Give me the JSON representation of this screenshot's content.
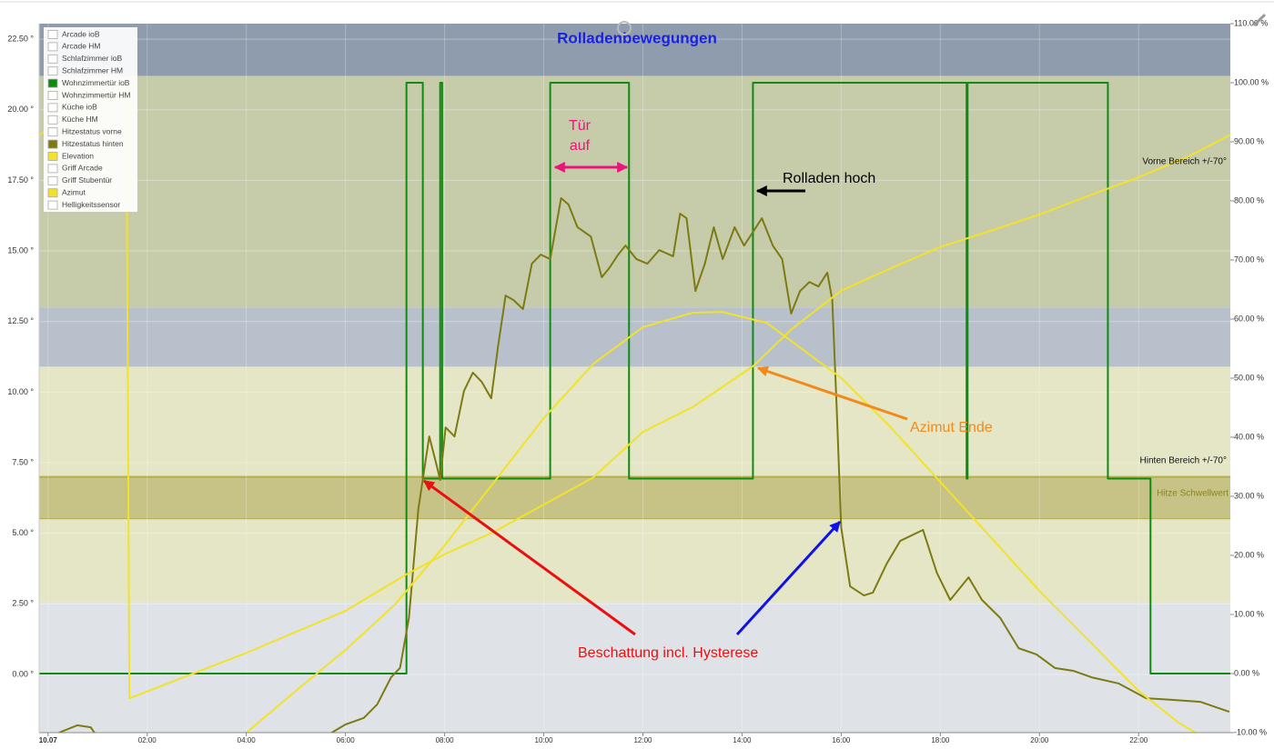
{
  "chart_data": {
    "type": "line",
    "title": "Rolladenbewegungen",
    "xlim": [
      -0.18,
      23.85
    ],
    "xticks": [
      {
        "value": 0,
        "label": "10.07"
      },
      {
        "value": 2,
        "label": "02:00"
      },
      {
        "value": 4,
        "label": "04:00"
      },
      {
        "value": 6,
        "label": "06:00"
      },
      {
        "value": 8,
        "label": "08:00"
      },
      {
        "value": 10,
        "label": "10:00"
      },
      {
        "value": 12,
        "label": "12:00"
      },
      {
        "value": 14,
        "label": "14:00"
      },
      {
        "value": 16,
        "label": "16:00"
      },
      {
        "value": 18,
        "label": "18:00"
      },
      {
        "value": 20,
        "label": "20:00"
      },
      {
        "value": 22,
        "label": "22:00"
      }
    ],
    "ylim": [
      -2.06,
      23.05
    ],
    "yticks": [
      {
        "value": 0,
        "label": "0.00 °"
      },
      {
        "value": 2.5,
        "label": "2.50 °"
      },
      {
        "value": 5,
        "label": "5.00 °"
      },
      {
        "value": 7.5,
        "label": "7.50 °"
      },
      {
        "value": 10,
        "label": "10.00 °"
      },
      {
        "value": 12.5,
        "label": "12.50 °"
      },
      {
        "value": 15,
        "label": "15.00 °"
      },
      {
        "value": 17.5,
        "label": "17.50 °"
      },
      {
        "value": 20,
        "label": "20.00 °"
      },
      {
        "value": 22.5,
        "label": "22.50 °"
      }
    ],
    "y2lim": [
      -10,
      110
    ],
    "y2ticks": [
      {
        "value": -10,
        "label": "-10.00 %"
      },
      {
        "value": 0,
        "label": "0.00 %"
      },
      {
        "value": 10,
        "label": "10.00 %"
      },
      {
        "value": 20,
        "label": "20.00 %"
      },
      {
        "value": 30,
        "label": "30.00 %"
      },
      {
        "value": 40,
        "label": "40.00 %"
      },
      {
        "value": 50,
        "label": "50.00 %"
      },
      {
        "value": 60,
        "label": "60.00 %"
      },
      {
        "value": 70,
        "label": "70.00 %"
      },
      {
        "value": 80,
        "label": "80.00 %"
      },
      {
        "value": 90,
        "label": "90.00 %"
      },
      {
        "value": 100,
        "label": "100.00 %"
      },
      {
        "value": 110,
        "label": "110.00 %"
      }
    ],
    "grid": true,
    "legend": "top-left",
    "bands": [
      {
        "from": 21.2,
        "to": 23.05,
        "color": "#8e9cae"
      },
      {
        "from": 13.0,
        "to": 21.2,
        "color": "#c6cbaa"
      },
      {
        "from": 10.9,
        "to": 13.0,
        "color": "#b8c1cb"
      },
      {
        "from": 7.0,
        "to": 10.9,
        "color": "#e4e6c6"
      },
      {
        "from": 5.5,
        "to": 7.0,
        "color": "#c7c387",
        "border": "#b3ae4e"
      },
      {
        "from": 2.55,
        "to": 5.5,
        "color": "#e4e6c6"
      },
      {
        "from": -2.06,
        "to": 2.55,
        "color": "#dfe3e8"
      }
    ],
    "band_labels": [
      "Vorne Bereich +/-70°",
      "Hinten Bereich +/-70°",
      "Hitze Schwellwert"
    ],
    "annotations": [
      "Tür",
      "auf",
      "Rolladen hoch",
      "Azimut Ende",
      "Beschattung incl. Hysterese"
    ],
    "series": [
      {
        "name": "Arcade ioB",
        "visible": false
      },
      {
        "name": "Arcade HM",
        "visible": false
      },
      {
        "name": "Schlafzimmer ioB",
        "visible": false
      },
      {
        "name": "Schlafzimmer HM",
        "visible": false
      },
      {
        "name": "Wohnzimmertür ioB",
        "visible": true,
        "color": "#118a11",
        "axis": "y2",
        "step": true,
        "x": [
          -0.18,
          7.23,
          7.56,
          7.91,
          7.95,
          10.13,
          11.72,
          14.22,
          18.53,
          18.55,
          21.38,
          22.24
        ],
        "values": [
          0,
          100,
          33,
          100,
          33,
          100,
          33,
          100,
          33,
          100,
          33,
          0
        ]
      },
      {
        "name": "Wohnzimmertür HM",
        "visible": false
      },
      {
        "name": "Küche ioB",
        "visible": false
      },
      {
        "name": "Küche HM",
        "visible": false
      },
      {
        "name": "Hitzestatus vorne",
        "visible": false
      },
      {
        "name": "Hitzestatus hinten",
        "visible": true,
        "color": "#7d7a14",
        "x": [
          0.22,
          0.59,
          0.86,
          1.01,
          null,
          5.54,
          6.0,
          6.37,
          6.64,
          6.92,
          7.1,
          7.28,
          7.47,
          7.69,
          7.83,
          7.91,
          8.02,
          8.2,
          8.39,
          8.57,
          8.75,
          8.94,
          9.08,
          9.23,
          9.39,
          9.58,
          9.76,
          9.94,
          10.13,
          10.35,
          10.5,
          10.68,
          10.95,
          11.17,
          11.32,
          11.5,
          11.65,
          11.87,
          12.09,
          12.33,
          12.61,
          12.75,
          12.88,
          13.06,
          13.25,
          13.43,
          13.61,
          13.85,
          14.04,
          14.22,
          14.4,
          14.62,
          14.81,
          14.99,
          15.17,
          15.36,
          15.54,
          15.72,
          15.82,
          15.91,
          16.0,
          16.18,
          16.46,
          16.64,
          16.92,
          17.19,
          17.65,
          17.93,
          18.2,
          18.57,
          18.84,
          19.21,
          19.58,
          19.94,
          20.31,
          20.68,
          21.05,
          21.6,
          22.15,
          22.7,
          23.25,
          23.83
        ],
        "values": [
          -2.06,
          -1.8,
          -1.87,
          -2.25,
          null,
          -2.25,
          -1.77,
          -1.54,
          -1.06,
          -0.1,
          0.23,
          2.0,
          5.86,
          8.43,
          7.47,
          6.89,
          8.75,
          8.43,
          10.04,
          10.69,
          10.36,
          9.78,
          11.65,
          13.42,
          13.26,
          12.94,
          14.55,
          14.87,
          14.71,
          16.87,
          16.64,
          15.84,
          15.51,
          14.07,
          14.39,
          14.87,
          15.19,
          14.71,
          14.55,
          15.03,
          14.81,
          16.32,
          16.16,
          13.58,
          14.55,
          15.84,
          14.71,
          15.84,
          15.19,
          15.67,
          16.16,
          15.19,
          14.71,
          12.78,
          13.58,
          13.9,
          13.74,
          14.23,
          13.26,
          9.4,
          5.21,
          3.12,
          2.8,
          2.9,
          3.93,
          4.73,
          5.12,
          3.6,
          2.64,
          3.44,
          2.64,
          2.0,
          0.93,
          0.71,
          0.23,
          0.13,
          -0.1,
          -0.32,
          -0.84,
          -0.9,
          -0.97,
          -1.32
        ]
      },
      {
        "name": "Elevation",
        "visible": true,
        "color": "#f2e22a",
        "x": [
          4.0,
          5.0,
          6.0,
          7.0,
          8.0,
          9.0,
          10.0,
          11.0,
          12.0,
          13.0,
          13.6,
          14.5,
          15.0,
          16.0,
          17.0,
          18.0,
          19.0,
          20.0,
          21.0,
          22.0,
          22.8,
          23.15
        ],
        "values": [
          -2.06,
          -0.58,
          0.87,
          2.48,
          4.57,
          6.82,
          9.08,
          11.0,
          12.3,
          12.81,
          12.84,
          12.45,
          11.8,
          10.5,
          8.75,
          6.82,
          4.89,
          2.96,
          1.19,
          -0.58,
          -1.7,
          -2.06
        ]
      },
      {
        "name": "Griff Arcade",
        "visible": false
      },
      {
        "name": "Griff Stubentür",
        "visible": false
      },
      {
        "name": "Azimut",
        "visible": true,
        "color": "#f2e22a",
        "axis": "y2",
        "x": [
          -0.18,
          1.58,
          1.64,
          4.0,
          6.0,
          7.23,
          8.0,
          9.0,
          10.0,
          11.0,
          12.0,
          13.0,
          14.22,
          15.0,
          16.0,
          17.0,
          18.0,
          19.0,
          20.0,
          21.0,
          22.0,
          23.0,
          23.85
        ],
        "values": [
          91.2,
          99,
          -4.2,
          3.5,
          10.6,
          16.8,
          20.2,
          24.0,
          28.6,
          33.2,
          40.9,
          45.1,
          52.0,
          58.3,
          64.8,
          68.6,
          72.2,
          74.9,
          77.7,
          80.9,
          84.0,
          87.5,
          91.2
        ]
      },
      {
        "name": "Helligkeitssensor",
        "visible": false
      }
    ]
  }
}
